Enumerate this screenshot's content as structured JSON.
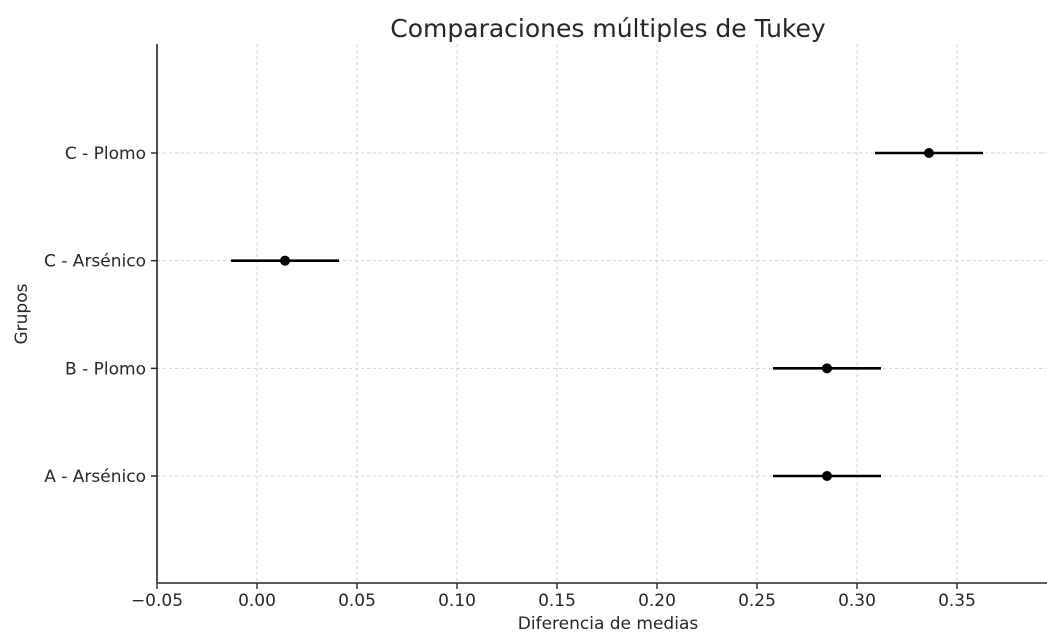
{
  "chart_data": {
    "type": "scatter",
    "subtype": "interval-plot",
    "title": "Comparaciones múltiples de Tukey",
    "xlabel": "Diferencia de medias",
    "ylabel": "Grupos",
    "xlim": [
      -0.05,
      0.395
    ],
    "x_ticks": [
      -0.05,
      0.0,
      0.05,
      0.1,
      0.15,
      0.2,
      0.25,
      0.3,
      0.35
    ],
    "x_tick_labels": [
      "−0.05",
      "0.00",
      "0.05",
      "0.10",
      "0.15",
      "0.20",
      "0.25",
      "0.30",
      "0.35"
    ],
    "categories": [
      "A - Arsénico",
      "B - Plomo",
      "C - Arsénico",
      "C - Plomo"
    ],
    "points": [
      {
        "group": "A - Arsénico",
        "mean": 0.285,
        "lower": 0.258,
        "upper": 0.312
      },
      {
        "group": "B - Plomo",
        "mean": 0.285,
        "lower": 0.258,
        "upper": 0.312
      },
      {
        "group": "C - Arsénico",
        "mean": 0.014,
        "lower": -0.013,
        "upper": 0.041
      },
      {
        "group": "C - Plomo",
        "mean": 0.336,
        "lower": 0.309,
        "upper": 0.363
      }
    ],
    "grid": true,
    "marker_color": "#000000"
  }
}
